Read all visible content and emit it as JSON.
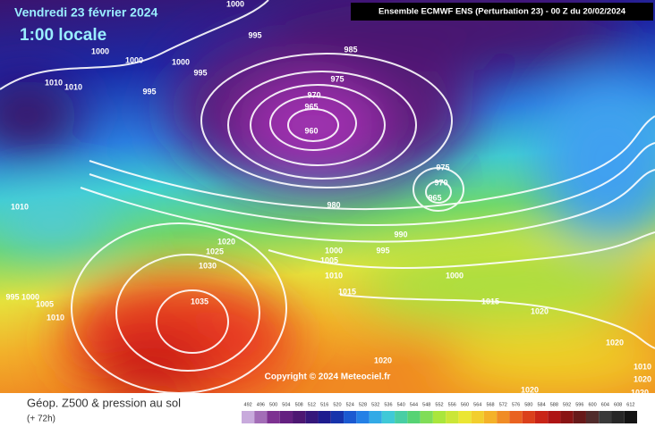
{
  "header": {
    "date": "Vendredi 23 février 2024",
    "time": "1:00 locale",
    "model": "Ensemble ECMWF ENS  (Perturbation 23)  -  00 Z du 20/02/2024",
    "copyright": "Copyright © 2024 Meteociel.fr"
  },
  "footer": {
    "title": "Géop. Z500 & pression au sol",
    "lead": "(+ 72h)"
  },
  "scale": [
    492,
    496,
    500,
    504,
    508,
    512,
    516,
    520,
    524,
    528,
    532,
    536,
    540,
    544,
    548,
    552,
    556,
    560,
    564,
    568,
    572,
    576,
    580,
    584,
    588,
    592,
    596,
    600,
    604,
    608,
    612
  ],
  "isobars": [
    1000,
    995,
    1000,
    1000,
    1000,
    995,
    985,
    975,
    1010,
    1010,
    995,
    970,
    965,
    960,
    975,
    970,
    965,
    980,
    1010,
    990,
    995,
    1020,
    1025,
    1000,
    1005,
    1030,
    1010,
    1000,
    995,
    1000,
    1005,
    1015,
    1015,
    1035,
    1010,
    1020,
    1020,
    1020,
    1010,
    1020,
    1020,
    1020
  ]
}
